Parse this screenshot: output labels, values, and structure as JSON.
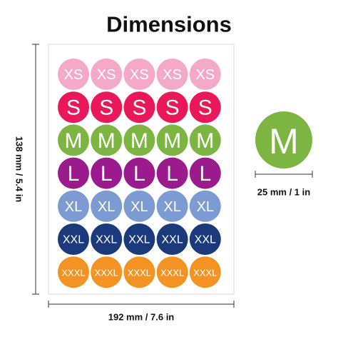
{
  "title": "Dimensions",
  "sheet": {
    "rows": [
      {
        "label": "XS",
        "color": "#f4a9c8"
      },
      {
        "label": "S",
        "color": "#e8185b"
      },
      {
        "label": "M",
        "color": "#7cb542"
      },
      {
        "label": "L",
        "color": "#9b1b8e"
      },
      {
        "label": "XL",
        "color": "#7c9bd2"
      },
      {
        "label": "XXL",
        "color": "#1b3a7c"
      },
      {
        "label": "XXXL",
        "color": "#f39323"
      }
    ],
    "columns": 5,
    "height_label": "138 mm / 5.4 in",
    "width_label": "192 mm / 7.6 in"
  },
  "single_sticker": {
    "label": "M",
    "color": "#7cb542",
    "size_label": "25 mm / 1 in"
  }
}
